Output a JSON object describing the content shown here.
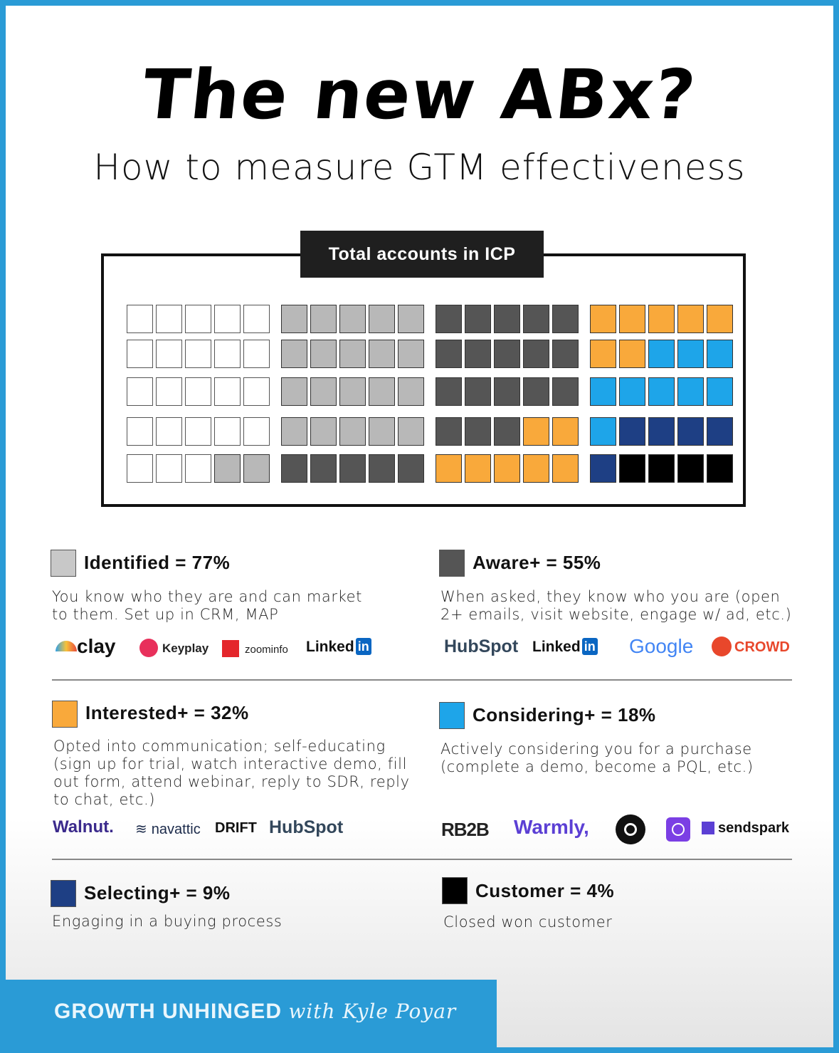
{
  "header": {
    "title": "The new ABx?",
    "subtitle": "How to measure GTM effectiveness"
  },
  "grid": {
    "label": "Total accounts in ICP",
    "cell_color_keys": {
      "W": "#ffffff",
      "L": "#b8b8b8",
      "D": "#555555",
      "O": "#f9a93b",
      "C": "#1ea5e9",
      "N": "#1e3f84",
      "K": "#000000"
    },
    "rows": [
      "WWWWWLLLLLDDDDDOOOOO",
      "WWWWWLLLLLDDDDDOOCCC",
      "WWWWWLLLLLDDDDDCCCCC",
      "WWWWWLLLLLDDDOOCNNNN",
      "WWWLLDDDDDOOOOONKKKK"
    ]
  },
  "legend": [
    {
      "title": "Identified = 77%",
      "color": "#c8c8c8",
      "description": "You know who they are and can market\nto them. Set up in CRM, MAP",
      "logos": [
        "clay",
        "Keyplay",
        "zoominfo",
        "Linked",
        "in"
      ]
    },
    {
      "title": "Aware+ = 55%",
      "color": "#555555",
      "description": "When asked, they know who you are (open\n2+ emails, visit website, engage w/ ad, etc.)",
      "logos": [
        "HubSpot",
        "Linked",
        "in",
        "Google",
        "CROWD"
      ]
    },
    {
      "title": "Interested+ = 32%",
      "color": "#f9a93b",
      "description": "Opted into communication; self-educating\n(sign up for trial, watch interactive demo, fill\nout form, attend webinar, reply to SDR, reply\nto chat, etc.)",
      "logos": [
        "Walnut.",
        "navattic",
        "DRIFT",
        "HubSpot"
      ]
    },
    {
      "title": "Considering+ = 18%",
      "color": "#1ea5e9",
      "description": "Actively considering you for a purchase\n(complete a demo, become a PQL, etc.)",
      "logos": [
        "RB2B",
        "Warmly,",
        "sendspark"
      ]
    },
    {
      "title": "Selecting+ = 9%",
      "color": "#1e3f84",
      "description": "Engaging in a buying process",
      "logos": []
    },
    {
      "title": "Customer = 4%",
      "color": "#000000",
      "description": "Closed won customer",
      "logos": []
    }
  ],
  "footer": {
    "brand": "GROWTH UNHINGED",
    "byline": "with Kyle Poyar"
  }
}
